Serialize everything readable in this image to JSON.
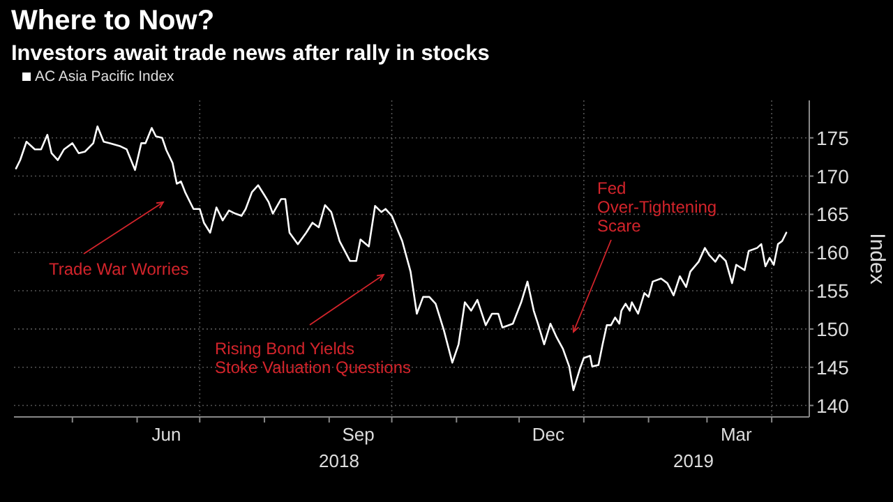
{
  "chart_data": {
    "type": "line",
    "title": "Where to Now?",
    "subtitle": "Investors await trade news after rally in stocks",
    "ylabel": "Index",
    "legend": "top left",
    "grid": true,
    "xlim": [
      "2018-04-03",
      "2019-04-19"
    ],
    "ylim": [
      138.5,
      179.9
    ],
    "yticks": [
      140,
      145,
      150,
      155,
      160,
      165,
      170,
      175
    ],
    "xticks": [
      {
        "value": "2018-05-01",
        "label": null
      },
      {
        "value": "2018-06-01",
        "label": null
      },
      {
        "value": "2018-06-15",
        "label": "Jun"
      },
      {
        "value": "2018-07-01",
        "label": null
      },
      {
        "value": "2018-08-01",
        "label": null
      },
      {
        "value": "2018-09-01",
        "label": null
      },
      {
        "value": "2018-09-15",
        "label": "Sep"
      },
      {
        "value": "2018-10-01",
        "label": null
      },
      {
        "value": "2018-11-01",
        "label": null
      },
      {
        "value": "2018-12-01",
        "label": null
      },
      {
        "value": "2018-12-15",
        "label": "Dec"
      },
      {
        "value": "2019-01-01",
        "label": null
      },
      {
        "value": "2019-02-01",
        "label": null
      },
      {
        "value": "2019-03-01",
        "label": null
      },
      {
        "value": "2019-03-15",
        "label": "Mar"
      },
      {
        "value": "2019-04-01",
        "label": null
      }
    ],
    "annotations": [
      "Trade War Worries",
      "Rising Bond Yields\nStoke Valuation Questions",
      "Fed\nOver-Tightening\nScare",
      "2018",
      "2019"
    ],
    "series": [
      {
        "name": "AC Asia Pacific Index",
        "color": "#ffffff",
        "x": [
          "2018-04-04",
          "2018-04-06",
          "2018-04-09",
          "2018-04-13",
          "2018-04-16",
          "2018-04-19",
          "2018-04-21",
          "2018-04-24",
          "2018-04-27",
          "2018-05-01",
          "2018-05-04",
          "2018-05-07",
          "2018-05-11",
          "2018-05-13",
          "2018-05-16",
          "2018-05-19",
          "2018-05-24",
          "2018-05-27",
          "2018-05-31",
          "2018-06-03",
          "2018-06-05",
          "2018-06-08",
          "2018-06-10",
          "2018-06-13",
          "2018-06-15",
          "2018-06-18",
          "2018-06-20",
          "2018-06-22",
          "2018-06-24",
          "2018-06-28",
          "2018-07-01",
          "2018-07-03",
          "2018-07-06",
          "2018-07-09",
          "2018-07-12",
          "2018-07-15",
          "2018-07-18",
          "2018-07-21",
          "2018-07-23",
          "2018-07-26",
          "2018-07-29",
          "2018-08-01",
          "2018-08-03",
          "2018-08-05",
          "2018-08-09",
          "2018-08-11",
          "2018-08-13",
          "2018-08-17",
          "2018-08-21",
          "2018-08-24",
          "2018-08-27",
          "2018-08-30",
          "2018-09-02",
          "2018-09-06",
          "2018-09-11",
          "2018-09-14",
          "2018-09-16",
          "2018-09-20",
          "2018-09-23",
          "2018-09-26",
          "2018-09-28",
          "2018-10-01",
          "2018-10-06",
          "2018-10-10",
          "2018-10-13",
          "2018-10-16",
          "2018-10-19",
          "2018-10-22",
          "2018-10-26",
          "2018-10-30",
          "2018-11-02",
          "2018-11-05",
          "2018-11-08",
          "2018-11-11",
          "2018-11-15",
          "2018-11-18",
          "2018-11-21",
          "2018-11-23",
          "2018-11-28",
          "2018-12-02",
          "2018-12-05",
          "2018-12-08",
          "2018-12-10",
          "2018-12-13",
          "2018-12-16",
          "2018-12-19",
          "2018-12-22",
          "2018-12-25",
          "2018-12-27",
          "2018-12-30",
          "2019-01-01",
          "2019-01-04",
          "2019-01-05",
          "2019-01-08",
          "2019-01-10",
          "2019-01-12",
          "2019-01-14",
          "2019-01-16",
          "2019-01-18",
          "2019-01-19",
          "2019-01-21",
          "2019-01-23",
          "2019-01-24",
          "2019-01-27",
          "2019-01-30",
          "2019-02-01",
          "2019-02-03",
          "2019-02-07",
          "2019-02-10",
          "2019-02-13",
          "2019-02-16",
          "2019-02-19",
          "2019-02-21",
          "2019-02-25",
          "2019-02-28",
          "2019-03-02",
          "2019-03-05",
          "2019-03-07",
          "2019-03-10",
          "2019-03-13",
          "2019-03-15",
          "2019-03-19",
          "2019-03-21",
          "2019-03-25",
          "2019-03-27",
          "2019-03-29",
          "2019-03-31",
          "2019-04-02",
          "2019-04-04",
          "2019-04-06",
          "2019-04-08"
        ],
        "values": [
          171.0,
          172.1,
          174.5,
          173.5,
          173.5,
          175.4,
          173.0,
          172.1,
          173.5,
          174.3,
          173.0,
          173.2,
          174.3,
          176.5,
          174.5,
          174.3,
          173.9,
          173.5,
          170.8,
          174.3,
          174.3,
          176.3,
          175.2,
          175.0,
          173.4,
          171.7,
          169.0,
          169.3,
          167.9,
          165.7,
          165.7,
          163.9,
          162.6,
          165.9,
          164.2,
          165.5,
          165.1,
          164.8,
          165.7,
          167.9,
          168.8,
          167.5,
          166.6,
          165.1,
          167.0,
          167.0,
          162.6,
          161.1,
          162.6,
          163.9,
          163.3,
          166.2,
          165.3,
          161.5,
          158.9,
          158.9,
          161.7,
          160.8,
          166.1,
          165.3,
          165.7,
          164.8,
          161.5,
          157.5,
          152.0,
          154.2,
          154.2,
          153.3,
          149.8,
          145.6,
          148.0,
          153.5,
          152.4,
          153.8,
          150.5,
          152.0,
          152.0,
          150.2,
          150.7,
          153.5,
          156.2,
          152.4,
          150.7,
          148.0,
          150.7,
          148.9,
          147.4,
          145.1,
          142.0,
          144.7,
          146.2,
          146.5,
          145.1,
          145.3,
          148.0,
          150.5,
          150.5,
          151.5,
          150.7,
          152.4,
          153.3,
          152.4,
          153.5,
          152.0,
          154.7,
          154.2,
          156.2,
          156.6,
          156.0,
          154.4,
          156.9,
          155.5,
          157.5,
          158.8,
          160.6,
          159.7,
          158.8,
          159.7,
          158.9,
          156.0,
          158.4,
          157.7,
          160.2,
          160.6,
          161.1,
          158.2,
          159.3,
          158.4,
          161.1,
          161.5,
          162.6
        ]
      }
    ]
  }
}
